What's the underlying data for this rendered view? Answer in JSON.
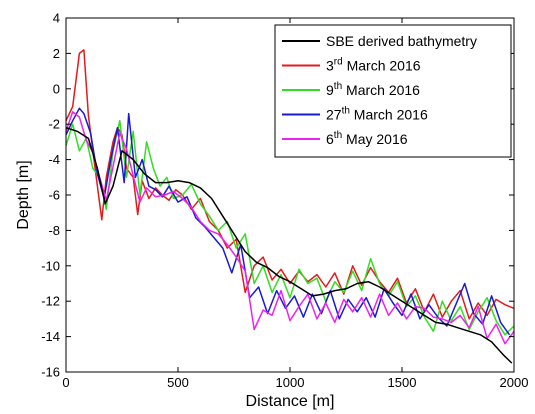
{
  "chart_data": {
    "type": "line",
    "xlabel": "Distance [m]",
    "ylabel": "Depth [m]",
    "xlim": [
      0,
      2000
    ],
    "ylim": [
      -16,
      4
    ],
    "xticks": [
      0,
      500,
      1000,
      1500,
      2000
    ],
    "yticks": [
      4,
      2,
      0,
      -2,
      -4,
      -6,
      -8,
      -10,
      -12,
      -14,
      -16
    ],
    "grid": false,
    "legend_position": "top-right",
    "series": [
      {
        "name": "SBE derived bathymetry",
        "color": "#000000",
        "x": [
          0,
          50,
          100,
          140,
          175,
          210,
          250,
          300,
          350,
          400,
          450,
          500,
          550,
          600,
          650,
          700,
          750,
          800,
          850,
          900,
          950,
          1000,
          1050,
          1100,
          1150,
          1200,
          1250,
          1300,
          1350,
          1400,
          1450,
          1500,
          1550,
          1600,
          1650,
          1700,
          1750,
          1800,
          1850,
          1900,
          1950,
          1990
        ],
        "y": [
          -2.2,
          -2.4,
          -2.8,
          -4.5,
          -6.5,
          -5.5,
          -3.5,
          -4.0,
          -4.8,
          -5.3,
          -5.3,
          -5.2,
          -5.3,
          -5.6,
          -6.2,
          -7.2,
          -8.2,
          -9.2,
          -9.8,
          -10.1,
          -10.6,
          -10.9,
          -11.3,
          -11.7,
          -11.6,
          -11.4,
          -11.3,
          -11.0,
          -10.9,
          -11.2,
          -11.6,
          -12.0,
          -12.4,
          -12.8,
          -13.2,
          -13.3,
          -13.5,
          -13.7,
          -13.9,
          -14.3,
          -15.0,
          -15.5
        ]
      },
      {
        "name": "3rd March 2016",
        "color": "#e41a1c",
        "x": [
          0,
          30,
          60,
          80,
          100,
          130,
          160,
          180,
          210,
          230,
          250,
          270,
          300,
          320,
          340,
          370,
          400,
          430,
          460,
          490,
          520,
          560,
          600,
          640,
          680,
          720,
          760,
          800,
          840,
          880,
          920,
          960,
          1000,
          1040,
          1080,
          1120,
          1160,
          1200,
          1240,
          1280,
          1320,
          1360,
          1400,
          1440,
          1480,
          1520,
          1560,
          1600,
          1640,
          1680,
          1720,
          1760,
          1800,
          1840,
          1880,
          1920,
          1960,
          2000
        ],
        "y": [
          -1.8,
          -1.0,
          2.0,
          2.2,
          -1.5,
          -4.5,
          -7.4,
          -5.0,
          -3.0,
          -2.2,
          -2.6,
          -4.5,
          -5.0,
          -7.1,
          -5.2,
          -6.2,
          -5.6,
          -6.0,
          -6.3,
          -5.7,
          -6.0,
          -6.8,
          -6.2,
          -7.5,
          -8.0,
          -9.0,
          -8.5,
          -11.5,
          -10.0,
          -9.5,
          -10.8,
          -10.2,
          -11.0,
          -10.3,
          -10.9,
          -10.5,
          -11.2,
          -10.4,
          -11.6,
          -10.0,
          -11.1,
          -10.1,
          -10.9,
          -11.5,
          -10.7,
          -12.1,
          -11.3,
          -12.6,
          -11.6,
          -12.9,
          -12.0,
          -11.4,
          -13.0,
          -12.1,
          -12.8,
          -11.9,
          -12.2,
          -12.4
        ]
      },
      {
        "name": "9th March 2016",
        "color": "#33dd22",
        "x": [
          0,
          30,
          60,
          90,
          120,
          150,
          180,
          210,
          240,
          270,
          300,
          330,
          360,
          390,
          420,
          450,
          480,
          520,
          560,
          600,
          640,
          680,
          720,
          760,
          800,
          840,
          880,
          920,
          960,
          1000,
          1040,
          1080,
          1120,
          1160,
          1200,
          1240,
          1280,
          1320,
          1360,
          1400,
          1440,
          1480,
          1520,
          1560,
          1600,
          1640,
          1680,
          1720,
          1760,
          1800,
          1840,
          1880,
          1920,
          1960,
          2000
        ],
        "y": [
          -3.2,
          -2.0,
          -3.5,
          -2.8,
          -4.5,
          -5.0,
          -6.8,
          -3.5,
          -1.8,
          -5.0,
          -2.4,
          -6.0,
          -3.0,
          -4.5,
          -5.5,
          -5.0,
          -6.2,
          -6.0,
          -5.4,
          -6.5,
          -7.2,
          -8.0,
          -7.5,
          -9.0,
          -8.2,
          -11.0,
          -10.0,
          -11.5,
          -10.5,
          -11.8,
          -10.2,
          -11.0,
          -10.7,
          -12.0,
          -10.9,
          -11.5,
          -10.3,
          -11.4,
          -9.6,
          -11.0,
          -11.7,
          -10.9,
          -12.3,
          -11.7,
          -12.9,
          -13.7,
          -12.0,
          -13.1,
          -12.3,
          -13.6,
          -12.6,
          -11.8,
          -13.1,
          -13.9,
          -13.4
        ]
      },
      {
        "name": "27th March 2016",
        "color": "#1a1ad4",
        "x": [
          0,
          30,
          60,
          80,
          110,
          140,
          170,
          200,
          230,
          260,
          280,
          310,
          340,
          370,
          400,
          430,
          460,
          500,
          540,
          580,
          620,
          660,
          700,
          740,
          780,
          820,
          860,
          900,
          940,
          980,
          1020,
          1060,
          1100,
          1140,
          1180,
          1220,
          1260,
          1300,
          1340,
          1380,
          1420,
          1460,
          1500,
          1540,
          1580,
          1620,
          1660,
          1700,
          1740,
          1780,
          1820,
          1860,
          1900,
          1940,
          1980
        ],
        "y": [
          -2.6,
          -1.8,
          -1.1,
          -1.4,
          -2.5,
          -4.8,
          -6.2,
          -4.0,
          -2.2,
          -5.3,
          -1.4,
          -5.0,
          -4.0,
          -5.5,
          -5.7,
          -6.1,
          -5.5,
          -6.4,
          -6.1,
          -7.3,
          -7.8,
          -8.4,
          -9.0,
          -10.4,
          -8.8,
          -11.8,
          -11.2,
          -12.7,
          -11.4,
          -12.4,
          -11.7,
          -12.9,
          -11.6,
          -12.7,
          -11.4,
          -13.0,
          -11.9,
          -12.6,
          -11.8,
          -12.9,
          -11.3,
          -12.1,
          -12.8,
          -11.6,
          -13.0,
          -12.2,
          -12.9,
          -13.4,
          -12.2,
          -11.0,
          -12.7,
          -13.3,
          -11.7,
          -13.2,
          -13.9
        ]
      },
      {
        "name": "6th May 2016",
        "color": "#ee22ee",
        "x": [
          0,
          30,
          60,
          90,
          120,
          150,
          180,
          210,
          240,
          270,
          300,
          330,
          360,
          400,
          440,
          480,
          520,
          560,
          600,
          640,
          680,
          720,
          760,
          800,
          840,
          880,
          920,
          960,
          1000,
          1040,
          1080,
          1120,
          1160,
          1200,
          1240,
          1280,
          1320,
          1360,
          1400,
          1440,
          1480,
          1520,
          1560,
          1600,
          1640,
          1680,
          1720,
          1760,
          1800,
          1840,
          1880,
          1920,
          1960,
          2000
        ],
        "y": [
          -2.4,
          -1.3,
          -1.6,
          -2.9,
          -3.6,
          -5.0,
          -6.3,
          -4.4,
          -2.5,
          -3.4,
          -4.9,
          -6.4,
          -5.6,
          -6.1,
          -6.0,
          -5.8,
          -6.2,
          -6.7,
          -7.5,
          -8.0,
          -8.2,
          -8.8,
          -9.5,
          -10.3,
          -13.6,
          -12.5,
          -12.8,
          -11.4,
          -13.1,
          -12.3,
          -11.6,
          -13.0,
          -12.1,
          -13.2,
          -11.9,
          -12.6,
          -11.8,
          -12.9,
          -11.6,
          -12.8,
          -12.1,
          -13.0,
          -12.3,
          -12.4,
          -12.9,
          -13.0,
          -13.2,
          -12.8,
          -13.5,
          -12.3,
          -14.1,
          -13.3,
          -14.4,
          -13.7
        ]
      }
    ],
    "legend": [
      {
        "base": "SBE derived bathymetry",
        "sup": "",
        "rest": ""
      },
      {
        "base": "3",
        "sup": "rd",
        "rest": " March 2016"
      },
      {
        "base": "9",
        "sup": "th",
        "rest": " March 2016"
      },
      {
        "base": "27",
        "sup": "th",
        "rest": " March 2016"
      },
      {
        "base": "6",
        "sup": "th",
        "rest": " May 2016"
      }
    ]
  }
}
